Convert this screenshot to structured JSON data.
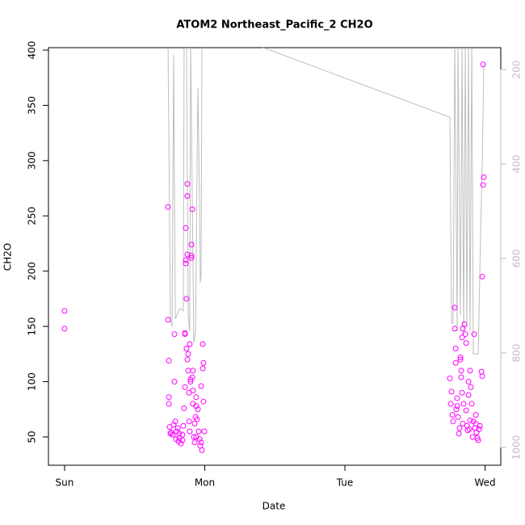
{
  "chart_data": {
    "type": "scatter",
    "title": "ATOM2 Northeast_Pacific_2 CH2O",
    "x_label": "Date",
    "y_label": "CH2O",
    "xlim": [
      -0.115,
      3.112
    ],
    "xticks": [
      {
        "value": 0,
        "label": "Sun"
      },
      {
        "value": 1,
        "label": "Mon"
      },
      {
        "value": 2,
        "label": "Tue"
      },
      {
        "value": 3,
        "label": "Wed"
      }
    ],
    "ylim": [
      24.4,
      402.2
    ],
    "yticks": [
      50,
      100,
      150,
      200,
      250,
      300,
      350,
      400
    ],
    "y2lim": [
      1037.6,
      153.8
    ],
    "y2ticks": [
      200,
      400,
      600,
      800,
      1000
    ],
    "y2_color": "#bebebe",
    "series": [
      {
        "type": "scatter",
        "color": "#ff00ff",
        "x": [
          0,
          0,
          0.738,
          0.738,
          0.744,
          0.744,
          0.744,
          0.749,
          0.755,
          0.761,
          0.772,
          0.778,
          0.784,
          0.784,
          0.79,
          0.795,
          0.801,
          0.807,
          0.813,
          0.818,
          0.83,
          0.841,
          0.847,
          0.853,
          0.859,
          0.859,
          0.859,
          0.865,
          0.865,
          0.865,
          0.87,
          0.87,
          0.876,
          0.876,
          0.876,
          0.876,
          0.882,
          0.882,
          0.888,
          0.888,
          0.893,
          0.893,
          0.899,
          0.899,
          0.905,
          0.905,
          0.905,
          0.911,
          0.911,
          0.916,
          0.916,
          0.922,
          0.928,
          0.928,
          0.934,
          0.939,
          0.939,
          0.945,
          0.951,
          0.957,
          0.963,
          0.968,
          0.974,
          0.98,
          0.986,
          0.986,
          0.991,
          0.991,
          0.997,
          0.974,
          0.939,
          0.841,
          0.818,
          0.916,
          2.749,
          2.755,
          2.761,
          2.767,
          2.772,
          2.784,
          2.784,
          2.79,
          2.79,
          2.795,
          2.801,
          2.807,
          2.813,
          2.818,
          2.824,
          2.824,
          2.83,
          2.83,
          2.836,
          2.841,
          2.841,
          2.847,
          2.853,
          2.859,
          2.865,
          2.865,
          2.87,
          2.876,
          2.882,
          2.882,
          2.888,
          2.893,
          2.893,
          2.899,
          2.905,
          2.911,
          2.916,
          2.922,
          2.928,
          2.934,
          2.939,
          2.945,
          2.951,
          2.957,
          2.963,
          2.974,
          2.98,
          2.98,
          2.986,
          2.991,
          2.986,
          2.801,
          2.836,
          2.934
        ],
        "values": [
          164,
          148,
          258,
          156,
          119,
          86,
          80,
          59,
          53,
          54,
          52,
          61,
          143,
          100,
          64,
          48,
          55,
          58,
          46,
          49,
          44,
          52,
          60,
          76,
          95,
          144,
          143,
          207,
          210,
          239,
          175,
          130,
          120,
          215,
          268,
          279,
          110,
          125,
          90,
          64,
          134,
          55,
          100,
          102,
          212,
          214,
          224,
          256,
          104,
          110,
          80,
          50,
          45,
          62,
          68,
          86,
          78,
          66,
          75,
          55,
          48,
          42,
          45,
          38,
          134,
          112,
          117,
          82,
          55,
          96,
          50,
          47,
          53,
          92,
          103,
          80,
          91,
          70,
          64,
          167,
          148,
          117,
          130,
          75,
          85,
          68,
          53,
          58,
          122,
          120,
          110,
          104,
          90,
          148,
          62,
          80,
          152,
          143,
          135,
          74,
          60,
          56,
          100,
          88,
          57,
          110,
          65,
          95,
          80,
          50,
          64,
          143,
          58,
          62,
          54,
          49,
          47,
          57,
          60,
          109,
          105,
          195,
          278,
          285,
          387,
          78,
          140,
          70
        ]
      },
      {
        "type": "line",
        "axis": "y2",
        "color": "#bebebe",
        "x": [
          0.738,
          0.755,
          0.767,
          0.778,
          0.79,
          0.801,
          0.813,
          0.824,
          0.836,
          0.847,
          0.853,
          0.87,
          0.882,
          0.893,
          0.899,
          0.922,
          0.934,
          0.951,
          0.963,
          0.968,
          0.974,
          0.98,
          0.991,
          1.383,
          2.749,
          2.761,
          2.772,
          2.784,
          2.801,
          2.807,
          2.824,
          2.836,
          2.847,
          2.859,
          2.87,
          2.882,
          2.893,
          2.905,
          2.916,
          2.951,
          2.968,
          2.98,
          2.991
        ],
        "values": [
          146,
          728,
          745,
          169,
          728,
          720,
          711,
          706,
          708,
          711,
          138,
          138,
          720,
          754,
          138,
          779,
          754,
          238,
          480,
          651,
          634,
          149,
          149,
          150,
          301,
          737,
          737,
          149,
          754,
          149,
          720,
          149,
          762,
          149,
          745,
          149,
          754,
          149,
          802,
          802,
          549,
          395,
          190
        ]
      }
    ]
  }
}
